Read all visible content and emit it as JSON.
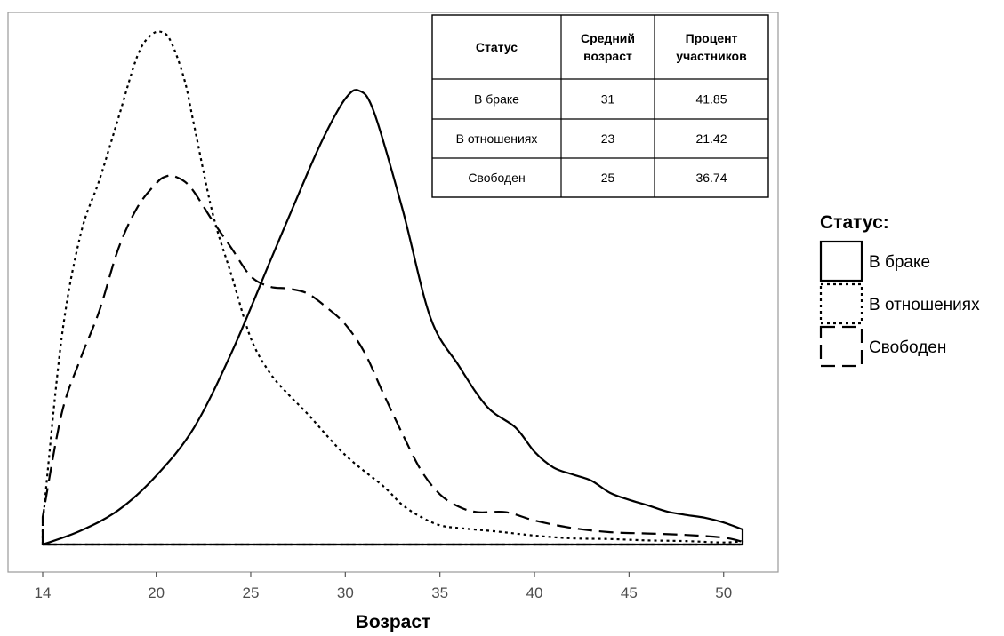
{
  "chart_data": {
    "type": "area",
    "xlabel": "Возраст",
    "ylabel": "",
    "xlim": [
      14,
      51
    ],
    "ylim": [
      0,
      0.074
    ],
    "x_ticks": [
      "14",
      "20",
      "25",
      "30",
      "35",
      "40",
      "45",
      "50"
    ],
    "grid": false,
    "legend": {
      "title": "Статус:",
      "placement": "right"
    },
    "series": [
      {
        "name": "В браке",
        "dash": "solid",
        "x": [
          14,
          16,
          18,
          20,
          22,
          24,
          26,
          28,
          29,
          30,
          30.7,
          31.5,
          33,
          34.5,
          36,
          37.5,
          39,
          40,
          41,
          42,
          43,
          44,
          45,
          46,
          47,
          48,
          49,
          50,
          51
        ],
        "y": [
          0,
          0.002,
          0.005,
          0.01,
          0.017,
          0.028,
          0.041,
          0.054,
          0.06,
          0.0648,
          0.066,
          0.063,
          0.049,
          0.033,
          0.026,
          0.02,
          0.017,
          0.0135,
          0.0112,
          0.0102,
          0.0093,
          0.0075,
          0.0065,
          0.0057,
          0.0048,
          0.0043,
          0.0039,
          0.0032,
          0.0022
        ]
      },
      {
        "name": "В отношениях",
        "dash": "dotted",
        "x": [
          14,
          15,
          16,
          17,
          18,
          19,
          19.7,
          20.3,
          20.8,
          21.5,
          22,
          23,
          24,
          25,
          26,
          27,
          28,
          30,
          32,
          33,
          34,
          35,
          36,
          38,
          40,
          42,
          44,
          46,
          48,
          50,
          51
        ],
        "y": [
          0.003,
          0.03,
          0.045,
          0.053,
          0.062,
          0.071,
          0.074,
          0.0745,
          0.073,
          0.0675,
          0.061,
          0.048,
          0.039,
          0.03,
          0.025,
          0.0218,
          0.019,
          0.013,
          0.0085,
          0.0058,
          0.004,
          0.0028,
          0.0024,
          0.0019,
          0.0013,
          0.0009,
          0.0008,
          0.0006,
          0.0005,
          0.0003,
          0.0005
        ]
      },
      {
        "name": "Свободен",
        "dash": "dashed",
        "x": [
          14,
          15,
          16,
          17,
          18,
          19,
          20,
          20.5,
          21,
          21.8,
          23,
          24,
          25,
          26,
          27,
          28,
          29,
          30,
          31,
          32,
          33,
          34,
          35,
          36,
          37,
          38.5,
          40,
          42,
          44,
          46,
          48,
          50,
          51
        ],
        "y": [
          0.004,
          0.019,
          0.027,
          0.034,
          0.043,
          0.049,
          0.0525,
          0.0535,
          0.0535,
          0.052,
          0.047,
          0.043,
          0.039,
          0.0375,
          0.0372,
          0.0365,
          0.0345,
          0.032,
          0.028,
          0.022,
          0.0162,
          0.0108,
          0.0073,
          0.0055,
          0.0047,
          0.0047,
          0.0035,
          0.0024,
          0.0018,
          0.0016,
          0.0014,
          0.001,
          0.0004
        ]
      }
    ],
    "table": {
      "headers": [
        [
          "Статус"
        ],
        [
          "Средний",
          "возраст"
        ],
        [
          "Процент",
          "участников"
        ]
      ],
      "rows": [
        [
          "В браке",
          "31",
          "41.85"
        ],
        [
          "В отношениях",
          "23",
          "21.42"
        ],
        [
          "Свободен",
          "25",
          "36.74"
        ]
      ]
    }
  }
}
